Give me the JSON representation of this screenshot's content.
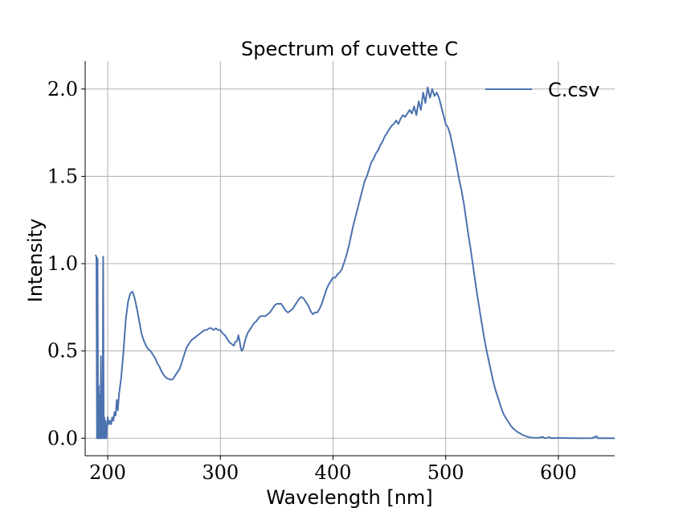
{
  "chart_data": {
    "type": "line",
    "title": "Spectrum of cuvette C",
    "xlabel": "Wavelength [nm]",
    "ylabel": "Intensity",
    "xlim": [
      180,
      650
    ],
    "ylim": [
      -0.1,
      2.16
    ],
    "xticks": [
      200,
      300,
      400,
      500,
      600
    ],
    "yticks": [
      0.0,
      0.5,
      1.0,
      1.5,
      2.0
    ],
    "xtick_labels": [
      "200",
      "300",
      "400",
      "500",
      "600"
    ],
    "ytick_labels": [
      "0.0",
      "0.5",
      "1.0",
      "1.5",
      "2.0"
    ],
    "grid": true,
    "legend_position": "top-right",
    "colors": {
      "series": "#4c72b0",
      "grid": "#b0b0b0",
      "axis": "#000000"
    },
    "series": [
      {
        "name": "C.csv",
        "points": [
          [
            189,
            1.05
          ],
          [
            190,
            1.04
          ],
          [
            190.5,
            0.0
          ],
          [
            191,
            1.03
          ],
          [
            191.5,
            0.0
          ],
          [
            192,
            0.3
          ],
          [
            192.5,
            0.0
          ],
          [
            193,
            0.25
          ],
          [
            193.5,
            0.0
          ],
          [
            194,
            0.47
          ],
          [
            194.5,
            0.0
          ],
          [
            195,
            0.3
          ],
          [
            195.5,
            0.0
          ],
          [
            196,
            1.04
          ],
          [
            196.5,
            0.0
          ],
          [
            197,
            0.12
          ],
          [
            197.5,
            0.0
          ],
          [
            198,
            0.1
          ],
          [
            199,
            0.0
          ],
          [
            200,
            0.12
          ],
          [
            201,
            0.08
          ],
          [
            202,
            0.1
          ],
          [
            203,
            0.08
          ],
          [
            204,
            0.12
          ],
          [
            205,
            0.1
          ],
          [
            206,
            0.15
          ],
          [
            207,
            0.13
          ],
          [
            208,
            0.22
          ],
          [
            209,
            0.16
          ],
          [
            210,
            0.25
          ],
          [
            212,
            0.35
          ],
          [
            214,
            0.5
          ],
          [
            216,
            0.68
          ],
          [
            218,
            0.78
          ],
          [
            220,
            0.83
          ],
          [
            222,
            0.84
          ],
          [
            224,
            0.8
          ],
          [
            226,
            0.74
          ],
          [
            228,
            0.67
          ],
          [
            230,
            0.6
          ],
          [
            232,
            0.56
          ],
          [
            234,
            0.53
          ],
          [
            236,
            0.51
          ],
          [
            238,
            0.5
          ],
          [
            240,
            0.48
          ],
          [
            242,
            0.46
          ],
          [
            244,
            0.43
          ],
          [
            246,
            0.41
          ],
          [
            248,
            0.38
          ],
          [
            250,
            0.36
          ],
          [
            252,
            0.345
          ],
          [
            254,
            0.34
          ],
          [
            256,
            0.335
          ],
          [
            258,
            0.34
          ],
          [
            260,
            0.36
          ],
          [
            262,
            0.38
          ],
          [
            264,
            0.4
          ],
          [
            266,
            0.44
          ],
          [
            268,
            0.48
          ],
          [
            270,
            0.52
          ],
          [
            272,
            0.54
          ],
          [
            274,
            0.56
          ],
          [
            276,
            0.57
          ],
          [
            278,
            0.58
          ],
          [
            280,
            0.59
          ],
          [
            282,
            0.6
          ],
          [
            284,
            0.61
          ],
          [
            286,
            0.62
          ],
          [
            288,
            0.62
          ],
          [
            290,
            0.63
          ],
          [
            292,
            0.63
          ],
          [
            294,
            0.62
          ],
          [
            296,
            0.63
          ],
          [
            298,
            0.62
          ],
          [
            300,
            0.62
          ],
          [
            302,
            0.6
          ],
          [
            304,
            0.59
          ],
          [
            306,
            0.57
          ],
          [
            308,
            0.55
          ],
          [
            310,
            0.54
          ],
          [
            312,
            0.53
          ],
          [
            313,
            0.55
          ],
          [
            315,
            0.56
          ],
          [
            316,
            0.59
          ],
          [
            317,
            0.56
          ],
          [
            318,
            0.52
          ],
          [
            319,
            0.5
          ],
          [
            320,
            0.51
          ],
          [
            322,
            0.56
          ],
          [
            324,
            0.6
          ],
          [
            326,
            0.62
          ],
          [
            328,
            0.64
          ],
          [
            330,
            0.66
          ],
          [
            332,
            0.67
          ],
          [
            334,
            0.69
          ],
          [
            336,
            0.7
          ],
          [
            338,
            0.7
          ],
          [
            340,
            0.7
          ],
          [
            342,
            0.71
          ],
          [
            344,
            0.72
          ],
          [
            346,
            0.74
          ],
          [
            348,
            0.76
          ],
          [
            350,
            0.77
          ],
          [
            352,
            0.77
          ],
          [
            354,
            0.77
          ],
          [
            356,
            0.75
          ],
          [
            358,
            0.73
          ],
          [
            360,
            0.72
          ],
          [
            362,
            0.73
          ],
          [
            364,
            0.74
          ],
          [
            366,
            0.76
          ],
          [
            368,
            0.78
          ],
          [
            370,
            0.8
          ],
          [
            372,
            0.81
          ],
          [
            374,
            0.8
          ],
          [
            376,
            0.78
          ],
          [
            378,
            0.76
          ],
          [
            380,
            0.73
          ],
          [
            382,
            0.71
          ],
          [
            384,
            0.72
          ],
          [
            386,
            0.72
          ],
          [
            388,
            0.74
          ],
          [
            390,
            0.77
          ],
          [
            392,
            0.81
          ],
          [
            394,
            0.85
          ],
          [
            396,
            0.88
          ],
          [
            398,
            0.9
          ],
          [
            400,
            0.92
          ],
          [
            402,
            0.92
          ],
          [
            404,
            0.94
          ],
          [
            406,
            0.95
          ],
          [
            408,
            0.97
          ],
          [
            410,
            1.01
          ],
          [
            412,
            1.05
          ],
          [
            414,
            1.1
          ],
          [
            416,
            1.16
          ],
          [
            418,
            1.22
          ],
          [
            420,
            1.27
          ],
          [
            422,
            1.32
          ],
          [
            424,
            1.37
          ],
          [
            426,
            1.42
          ],
          [
            428,
            1.47
          ],
          [
            430,
            1.5
          ],
          [
            432,
            1.54
          ],
          [
            434,
            1.58
          ],
          [
            436,
            1.6
          ],
          [
            438,
            1.63
          ],
          [
            440,
            1.65
          ],
          [
            442,
            1.68
          ],
          [
            444,
            1.7
          ],
          [
            446,
            1.73
          ],
          [
            448,
            1.75
          ],
          [
            450,
            1.77
          ],
          [
            452,
            1.79
          ],
          [
            454,
            1.8
          ],
          [
            456,
            1.82
          ],
          [
            458,
            1.8
          ],
          [
            460,
            1.83
          ],
          [
            462,
            1.85
          ],
          [
            464,
            1.84
          ],
          [
            466,
            1.86
          ],
          [
            468,
            1.88
          ],
          [
            470,
            1.86
          ],
          [
            472,
            1.9
          ],
          [
            474,
            1.85
          ],
          [
            476,
            1.93
          ],
          [
            478,
            1.88
          ],
          [
            480,
            1.98
          ],
          [
            482,
            1.92
          ],
          [
            484,
            2.01
          ],
          [
            486,
            1.95
          ],
          [
            488,
            2.0
          ],
          [
            490,
            1.96
          ],
          [
            492,
            1.98
          ],
          [
            494,
            1.95
          ],
          [
            496,
            1.9
          ],
          [
            498,
            1.85
          ],
          [
            500,
            1.8
          ],
          [
            502,
            1.78
          ],
          [
            504,
            1.74
          ],
          [
            506,
            1.68
          ],
          [
            508,
            1.62
          ],
          [
            510,
            1.55
          ],
          [
            512,
            1.48
          ],
          [
            514,
            1.42
          ],
          [
            516,
            1.35
          ],
          [
            518,
            1.26
          ],
          [
            520,
            1.17
          ],
          [
            522,
            1.09
          ],
          [
            524,
            1.0
          ],
          [
            526,
            0.91
          ],
          [
            528,
            0.82
          ],
          [
            530,
            0.74
          ],
          [
            532,
            0.66
          ],
          [
            534,
            0.58
          ],
          [
            536,
            0.51
          ],
          [
            538,
            0.45
          ],
          [
            540,
            0.39
          ],
          [
            542,
            0.33
          ],
          [
            544,
            0.28
          ],
          [
            546,
            0.24
          ],
          [
            548,
            0.2
          ],
          [
            550,
            0.16
          ],
          [
            552,
            0.13
          ],
          [
            554,
            0.11
          ],
          [
            556,
            0.09
          ],
          [
            558,
            0.07
          ],
          [
            560,
            0.055
          ],
          [
            562,
            0.045
          ],
          [
            564,
            0.035
          ],
          [
            566,
            0.028
          ],
          [
            568,
            0.02
          ],
          [
            570,
            0.015
          ],
          [
            572,
            0.01
          ],
          [
            575,
            0.005
          ],
          [
            578,
            0.003
          ],
          [
            582,
            0.002
          ],
          [
            586,
            0.008
          ],
          [
            588,
            0.0
          ],
          [
            592,
            0.006
          ],
          [
            594,
            0.0
          ],
          [
            600,
            0.002
          ],
          [
            610,
            0.001
          ],
          [
            620,
            0.0
          ],
          [
            630,
            0.001
          ],
          [
            634,
            0.012
          ],
          [
            635,
            0.0
          ],
          [
            640,
            0.001
          ],
          [
            650,
            0.0
          ]
        ]
      }
    ]
  }
}
